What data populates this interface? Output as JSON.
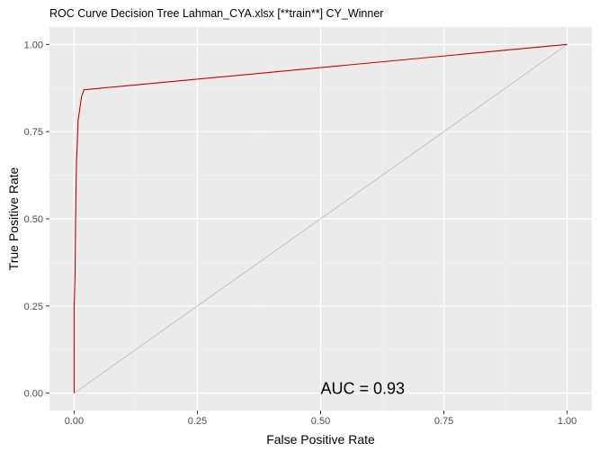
{
  "chart_data": {
    "type": "line",
    "title": "ROC Curve Decision Tree Lahman_CYA.xlsx [**train**] CY_Winner",
    "xlabel": "False Positive Rate",
    "ylabel": "True Positive Rate",
    "xlim": [
      -0.05,
      1.05
    ],
    "ylim": [
      -0.05,
      1.05
    ],
    "x_ticks": [
      0.0,
      0.25,
      0.5,
      0.75,
      1.0
    ],
    "x_tick_labels": [
      "0.00",
      "0.25",
      "0.50",
      "0.75",
      "1.00"
    ],
    "y_ticks": [
      0.0,
      0.25,
      0.5,
      0.75,
      1.0
    ],
    "y_tick_labels": [
      "0.00",
      "0.25",
      "0.50",
      "0.75",
      "1.00"
    ],
    "grid": true,
    "panel_background": "#ebebeb",
    "series": [
      {
        "color": "#cc0000",
        "x": [
          0.0,
          0.0,
          0.002,
          0.003,
          0.004,
          0.005,
          0.006,
          0.007,
          0.008,
          0.01,
          0.015,
          0.02,
          1.0
        ],
        "y": [
          0.0,
          0.25,
          0.34,
          0.5,
          0.6,
          0.67,
          0.7,
          0.74,
          0.78,
          0.8,
          0.85,
          0.87,
          1.0
        ]
      }
    ],
    "reference_line": {
      "color": "#b3b3b3",
      "x": [
        0.0,
        1.0
      ],
      "y": [
        0.0,
        1.0
      ]
    },
    "annotation": {
      "text": "AUC = 0.93",
      "x": 0.5,
      "y": 0.0
    }
  }
}
